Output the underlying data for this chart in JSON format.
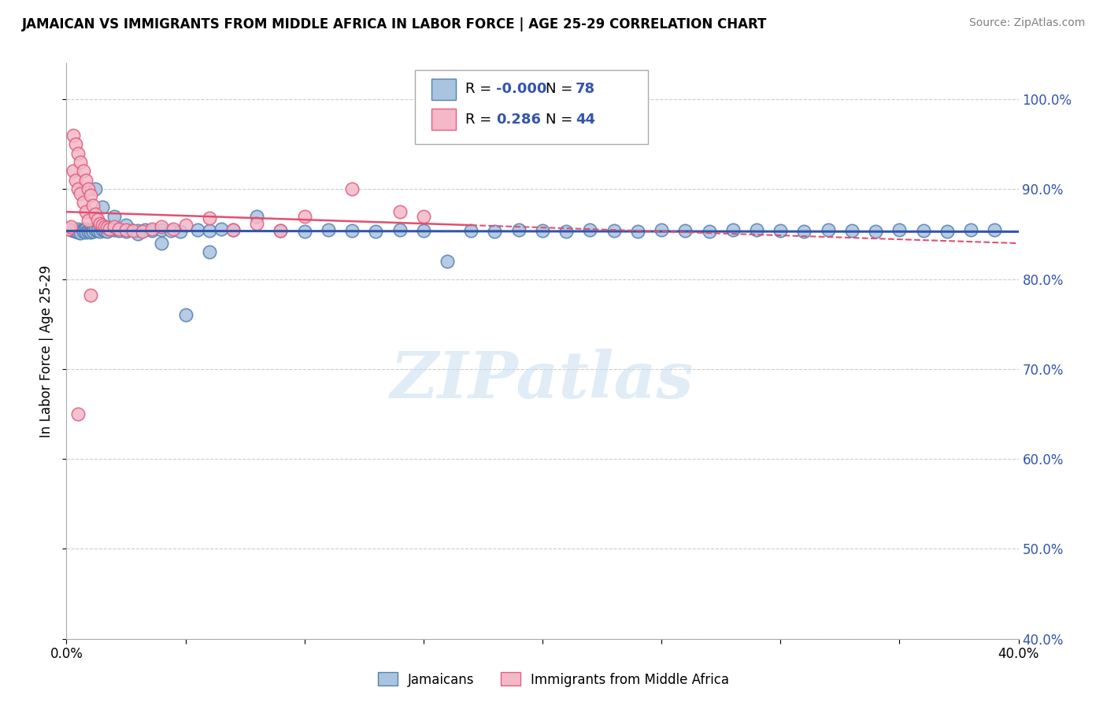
{
  "title": "JAMAICAN VS IMMIGRANTS FROM MIDDLE AFRICA IN LABOR FORCE | AGE 25-29 CORRELATION CHART",
  "source": "Source: ZipAtlas.com",
  "ylabel": "In Labor Force | Age 25-29",
  "xlim": [
    0.0,
    0.4
  ],
  "ylim": [
    0.4,
    1.04
  ],
  "yticks": [
    0.4,
    0.5,
    0.6,
    0.7,
    0.8,
    0.9,
    1.0
  ],
  "ytick_labels": [
    "40.0%",
    "50.0%",
    "60.0%",
    "70.0%",
    "80.0%",
    "90.0%",
    "100.0%"
  ],
  "xticks": [
    0.0,
    0.05,
    0.1,
    0.15,
    0.2,
    0.25,
    0.3,
    0.35,
    0.4
  ],
  "xtick_labels": [
    "0.0%",
    "",
    "",
    "",
    "",
    "",
    "",
    "",
    "40.0%"
  ],
  "legend_r_blue": "-0.000",
  "legend_n_blue": "78",
  "legend_r_pink": "0.286",
  "legend_n_pink": "44",
  "blue_color": "#A8C4E0",
  "pink_color": "#F4B8C8",
  "blue_edge_color": "#5580B0",
  "pink_edge_color": "#E06080",
  "blue_line_color": "#3355AA",
  "pink_line_color": "#E05070",
  "grid_color": "#CCCCCC",
  "background_color": "#FFFFFF",
  "watermark": "ZIPatlas",
  "blue_scatter_x": [
    0.002,
    0.003,
    0.004,
    0.005,
    0.005,
    0.006,
    0.006,
    0.007,
    0.007,
    0.008,
    0.008,
    0.009,
    0.009,
    0.01,
    0.01,
    0.011,
    0.011,
    0.012,
    0.013,
    0.014,
    0.015,
    0.016,
    0.017,
    0.018,
    0.02,
    0.022,
    0.025,
    0.027,
    0.03,
    0.033,
    0.036,
    0.04,
    0.044,
    0.048,
    0.055,
    0.06,
    0.065,
    0.07,
    0.08,
    0.09,
    0.1,
    0.11,
    0.12,
    0.13,
    0.14,
    0.15,
    0.16,
    0.17,
    0.18,
    0.19,
    0.2,
    0.21,
    0.22,
    0.23,
    0.24,
    0.25,
    0.26,
    0.27,
    0.28,
    0.29,
    0.3,
    0.31,
    0.32,
    0.33,
    0.34,
    0.35,
    0.36,
    0.37,
    0.38,
    0.39,
    0.012,
    0.015,
    0.02,
    0.025,
    0.03,
    0.04,
    0.05,
    0.06
  ],
  "blue_scatter_y": [
    0.855,
    0.854,
    0.853,
    0.856,
    0.852,
    0.854,
    0.851,
    0.855,
    0.853,
    0.856,
    0.852,
    0.854,
    0.853,
    0.855,
    0.852,
    0.854,
    0.853,
    0.855,
    0.854,
    0.853,
    0.855,
    0.854,
    0.853,
    0.856,
    0.855,
    0.854,
    0.853,
    0.855,
    0.854,
    0.855,
    0.854,
    0.855,
    0.854,
    0.853,
    0.855,
    0.854,
    0.856,
    0.855,
    0.87,
    0.854,
    0.853,
    0.855,
    0.854,
    0.853,
    0.855,
    0.854,
    0.82,
    0.854,
    0.853,
    0.855,
    0.854,
    0.853,
    0.855,
    0.854,
    0.853,
    0.855,
    0.854,
    0.853,
    0.855,
    0.855,
    0.854,
    0.853,
    0.855,
    0.854,
    0.853,
    0.855,
    0.854,
    0.853,
    0.855,
    0.855,
    0.9,
    0.88,
    0.87,
    0.86,
    0.85,
    0.84,
    0.76,
    0.83
  ],
  "pink_scatter_x": [
    0.001,
    0.002,
    0.003,
    0.003,
    0.004,
    0.004,
    0.005,
    0.005,
    0.006,
    0.006,
    0.007,
    0.007,
    0.008,
    0.008,
    0.009,
    0.009,
    0.01,
    0.011,
    0.012,
    0.013,
    0.014,
    0.015,
    0.016,
    0.017,
    0.018,
    0.02,
    0.022,
    0.025,
    0.028,
    0.032,
    0.036,
    0.04,
    0.045,
    0.05,
    0.06,
    0.07,
    0.08,
    0.09,
    0.1,
    0.12,
    0.14,
    0.15,
    0.005,
    0.01
  ],
  "pink_scatter_y": [
    0.856,
    0.858,
    0.96,
    0.92,
    0.95,
    0.91,
    0.94,
    0.9,
    0.93,
    0.895,
    0.92,
    0.885,
    0.91,
    0.875,
    0.9,
    0.865,
    0.893,
    0.882,
    0.872,
    0.866,
    0.862,
    0.86,
    0.858,
    0.857,
    0.856,
    0.858,
    0.856,
    0.855,
    0.854,
    0.853,
    0.856,
    0.858,
    0.856,
    0.86,
    0.868,
    0.855,
    0.862,
    0.854,
    0.87,
    0.9,
    0.875,
    0.87,
    0.65,
    0.782
  ]
}
